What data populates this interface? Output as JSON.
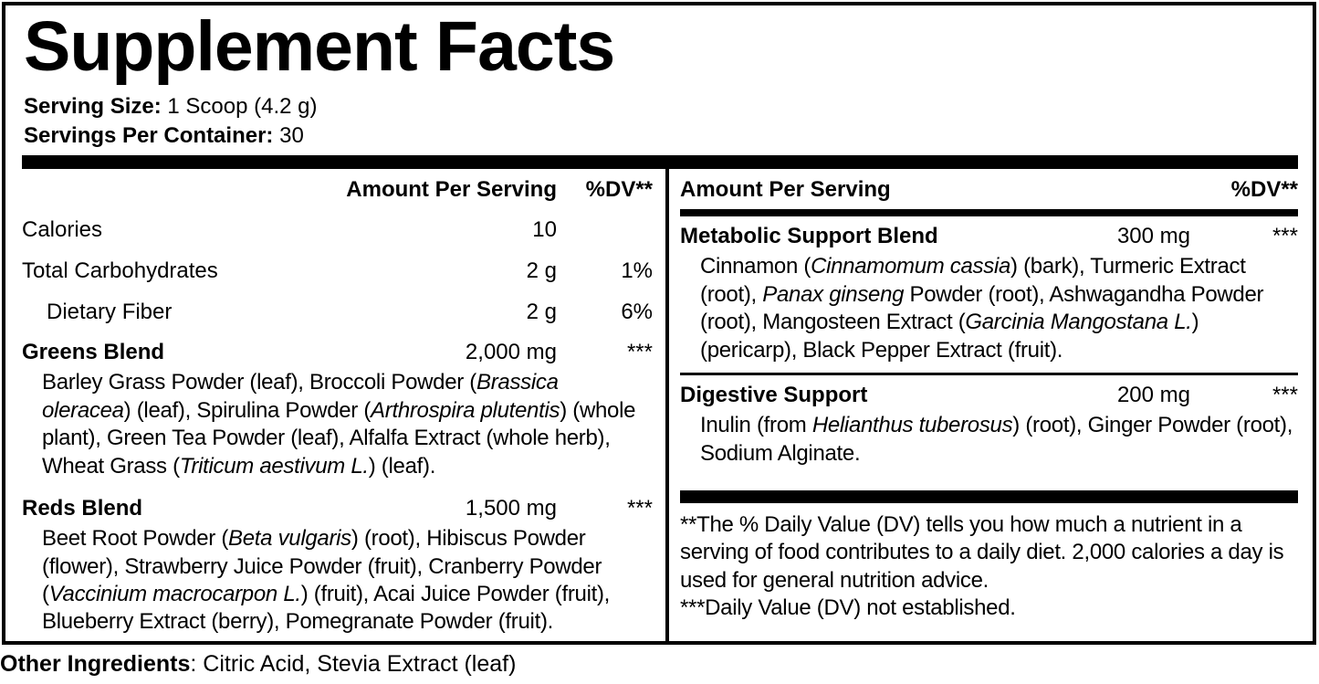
{
  "title": "Supplement Facts",
  "serving": {
    "size_label": "Serving Size:",
    "size_value": " 1 Scoop (4.2 g)",
    "per_container_label": "Servings Per Container:",
    "per_container_value": " 30"
  },
  "columns": {
    "left": {
      "header": {
        "amount": "Amount Per Serving",
        "dv": "%DV**"
      },
      "nutrients": [
        {
          "name": "Calories",
          "amount": "10",
          "dv": ""
        },
        {
          "name": "Total Carbohydrates",
          "amount": "2 g",
          "dv": "1%"
        },
        {
          "name": "Dietary Fiber",
          "amount": "2 g",
          "dv": "6%"
        }
      ],
      "blends": [
        {
          "name": "Greens Blend",
          "amount": "2,000 mg",
          "dv": "***",
          "desc": [
            {
              "t": "Barley Grass Powder (leaf), Broccoli Powder ("
            },
            {
              "t": "Brassica oleracea",
              "i": true
            },
            {
              "t": ") (leaf), Spirulina Powder ("
            },
            {
              "t": "Arthrospira plutentis",
              "i": true
            },
            {
              "t": ") (whole plant), Green Tea Powder (leaf), Alfalfa Extract (whole herb), Wheat Grass ("
            },
            {
              "t": "Triticum aestivum L.",
              "i": true
            },
            {
              "t": ") (leaf)."
            }
          ]
        },
        {
          "name": "Reds Blend",
          "amount": "1,500 mg",
          "dv": "***",
          "desc": [
            {
              "t": "Beet Root Powder ("
            },
            {
              "t": "Beta vulgaris",
              "i": true
            },
            {
              "t": ") (root), Hibiscus Powder (flower), Strawberry Juice Powder (fruit), Cranberry Powder ("
            },
            {
              "t": "Vaccinium macrocarpon L.",
              "i": true
            },
            {
              "t": ") (fruit), Acai Juice Powder (fruit), Blueberry Extract (berry), Pomegranate Powder (fruit)."
            }
          ]
        }
      ]
    },
    "right": {
      "header": {
        "amount": "Amount Per Serving",
        "dv": "%DV**"
      },
      "blends": [
        {
          "name": "Metabolic Support Blend",
          "amount": "300 mg",
          "dv": "***",
          "desc": [
            {
              "t": "Cinnamon ("
            },
            {
              "t": "Cinnamomum cassia",
              "i": true
            },
            {
              "t": ") (bark), Turmeric Extract (root), "
            },
            {
              "t": "Panax ginseng",
              "i": true
            },
            {
              "t": " Powder (root), Ashwagandha Powder (root), Mangosteen Extract ("
            },
            {
              "t": "Garcinia Mangostana L.",
              "i": true
            },
            {
              "t": ") (pericarp), Black Pepper Extract (fruit)."
            }
          ]
        },
        {
          "name": "Digestive Support",
          "amount": "200 mg",
          "dv": "***",
          "desc": [
            {
              "t": "Inulin (from "
            },
            {
              "t": "Helianthus tuberosus",
              "i": true
            },
            {
              "t": ") (root), Ginger Powder (root), Sodium Alginate."
            }
          ]
        }
      ],
      "footnotes": [
        "**The % Daily Value (DV) tells you how much a nutrient in a serving of food contributes to a daily diet. 2,000 calories a day is used for general nutrition advice.",
        "***Daily Value (DV) not established."
      ]
    }
  },
  "other_ingredients": {
    "label": "Other Ingredients",
    "value": ": Citric Acid, Stevia Extract (leaf)"
  },
  "colors": {
    "text": "#000000",
    "background": "#ffffff"
  }
}
